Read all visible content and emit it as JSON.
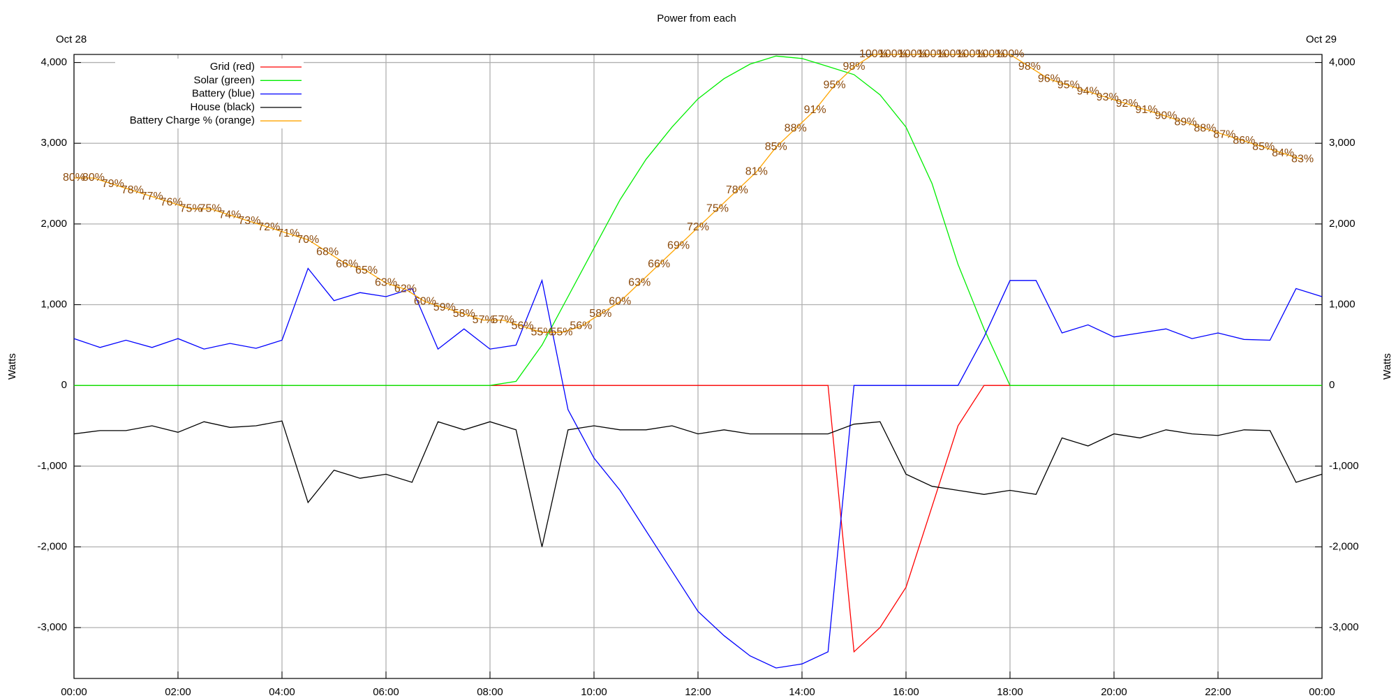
{
  "chart_data": {
    "type": "line",
    "title": "Power from each",
    "date_start": "Oct 28",
    "date_end": "Oct 29",
    "ylabel": "Watts",
    "legend": "upper left",
    "grid": true,
    "xlim": [
      0,
      24
    ],
    "xticks": [
      {
        "value": 0,
        "label": "00:00"
      },
      {
        "value": 2,
        "label": "02:00"
      },
      {
        "value": 4,
        "label": "04:00"
      },
      {
        "value": 6,
        "label": "06:00"
      },
      {
        "value": 8,
        "label": "08:00"
      },
      {
        "value": 10,
        "label": "10:00"
      },
      {
        "value": 12,
        "label": "12:00"
      },
      {
        "value": 14,
        "label": "14:00"
      },
      {
        "value": 16,
        "label": "16:00"
      },
      {
        "value": 18,
        "label": "18:00"
      },
      {
        "value": 20,
        "label": "20:00"
      },
      {
        "value": 22,
        "label": "22:00"
      },
      {
        "value": 24,
        "label": "00:00"
      }
    ],
    "ylim": [
      -3630,
      4100
    ],
    "yticks": [
      {
        "value": -3000,
        "label": "-3,000"
      },
      {
        "value": -2000,
        "label": "-2,000"
      },
      {
        "value": -1000,
        "label": "-1,000"
      },
      0,
      {
        "value": 1000,
        "label": "1,000"
      },
      {
        "value": 2000,
        "label": "2,000"
      },
      {
        "value": 3000,
        "label": "3,000"
      },
      {
        "value": 4000,
        "label": "4,000"
      }
    ],
    "y2lim": [
      -1,
      100
    ],
    "x": [
      0,
      0.5,
      1,
      1.5,
      2,
      2.5,
      3,
      3.5,
      4,
      4.5,
      5,
      5.5,
      6,
      6.5,
      7,
      7.5,
      8,
      8.5,
      9,
      9.5,
      10,
      10.5,
      11,
      11.5,
      12,
      12.5,
      13,
      13.5,
      14,
      14.5,
      15,
      15.5,
      16,
      16.5,
      17,
      17.5,
      18,
      18.5,
      19,
      19.5,
      20,
      20.5,
      21,
      21.5,
      22,
      22.5,
      23,
      23.5,
      24
    ],
    "series": [
      {
        "name": "Grid (red)",
        "color": "#ff0000",
        "values": [
          0,
          0,
          0,
          0,
          0,
          0,
          0,
          0,
          0,
          0,
          0,
          0,
          0,
          0,
          0,
          0,
          0,
          0,
          0,
          0,
          0,
          0,
          0,
          0,
          0,
          0,
          0,
          0,
          0,
          0,
          -3300,
          -3000,
          -2500,
          -1500,
          -500,
          0,
          0,
          0,
          0,
          0,
          0,
          0,
          0,
          0,
          0,
          0,
          0,
          0,
          0
        ]
      },
      {
        "name": "Solar (green)",
        "color": "#00ee00",
        "values": [
          0,
          0,
          0,
          0,
          0,
          0,
          0,
          0,
          0,
          0,
          0,
          0,
          0,
          0,
          0,
          0,
          0,
          50,
          500,
          1100,
          1700,
          2300,
          2800,
          3200,
          3550,
          3800,
          3980,
          4080,
          4050,
          3950,
          3850,
          3600,
          3200,
          2500,
          1500,
          700,
          0,
          0,
          0,
          0,
          0,
          0,
          0,
          0,
          0,
          0,
          0,
          0,
          0
        ]
      },
      {
        "name": "Battery (blue)",
        "color": "#0000ff",
        "values": [
          580,
          470,
          560,
          470,
          580,
          450,
          520,
          460,
          560,
          1450,
          1050,
          1150,
          1100,
          1200,
          450,
          700,
          450,
          500,
          1300,
          -300,
          -900,
          -1300,
          -1800,
          -2300,
          -2800,
          -3100,
          -3350,
          -3500,
          -3450,
          -3300,
          0,
          0,
          0,
          0,
          0,
          600,
          1300,
          1300,
          650,
          750,
          600,
          650,
          700,
          580,
          650,
          570,
          560,
          1200,
          1100
        ]
      },
      {
        "name": "House (black)",
        "color": "#000000",
        "values": [
          -600,
          -560,
          -560,
          -500,
          -580,
          -450,
          -520,
          -500,
          -440,
          -1450,
          -1050,
          -1150,
          -1100,
          -1200,
          -450,
          -550,
          -450,
          -550,
          -2000,
          -550,
          -500,
          -550,
          -550,
          -500,
          -600,
          -550,
          -600,
          -600,
          -600,
          -600,
          -480,
          -450,
          -1100,
          -1250,
          -1300,
          -1350,
          -1300,
          -1350,
          -650,
          -750,
          -600,
          -650,
          -550,
          -600,
          -620,
          -550,
          -560,
          -1200,
          -1100
        ]
      },
      {
        "name": "Battery Charge % (orange)",
        "color": "#ffa500",
        "label_color": "#8b4a0c",
        "axis": "y2",
        "x": [
          0,
          0.375,
          0.75,
          1.125,
          1.5,
          1.875,
          2.25,
          2.625,
          3,
          3.375,
          3.75,
          4.125,
          4.5,
          4.875,
          5.25,
          5.625,
          6,
          6.375,
          6.75,
          7.125,
          7.5,
          7.875,
          8.25,
          8.625,
          9,
          9.375,
          9.75,
          10.125,
          10.5,
          10.875,
          11.25,
          11.625,
          12,
          12.375,
          12.75,
          13.125,
          13.5,
          13.875,
          14.25,
          14.625,
          15,
          15.375,
          15.75,
          16.125,
          16.5,
          16.875,
          17.25,
          17.625,
          18,
          18.375,
          18.75,
          19.125,
          19.5,
          19.875,
          20.25,
          20.625,
          21,
          21.375,
          21.75,
          22.125,
          22.5,
          22.875,
          23.25,
          23.625
        ],
        "values": [
          80,
          80,
          79,
          78,
          77,
          76,
          75,
          75,
          74,
          73,
          72,
          71,
          70,
          68,
          66,
          65,
          63,
          62,
          60,
          59,
          58,
          57,
          57,
          56,
          55,
          55,
          56,
          58,
          60,
          63,
          66,
          69,
          72,
          75,
          78,
          81,
          85,
          88,
          91,
          95,
          98,
          100,
          100,
          100,
          100,
          100,
          100,
          100,
          100,
          98,
          96,
          95,
          94,
          93,
          92,
          91,
          90,
          89,
          88,
          87,
          86,
          85,
          84,
          83
        ],
        "value_labels": [
          "80%",
          "80%",
          "79%",
          "78%",
          "77%",
          "76%",
          "75%",
          "75%",
          "74%",
          "73%",
          "72%",
          "71%",
          "70%",
          "68%",
          "66%",
          "65%",
          "63%",
          "62%",
          "60%",
          "59%",
          "58%",
          "57%",
          "57%",
          "56%",
          "55%",
          "55%",
          "56%",
          "58%",
          "60%",
          "63%",
          "66%",
          "69%",
          "72%",
          "75%",
          "78%",
          "81%",
          "85%",
          "88%",
          "91%",
          "95%",
          "98%",
          "100%",
          "100%",
          "100%",
          "100%",
          "100%",
          "100%",
          "100%",
          "100%",
          "98%",
          "96%",
          "95%",
          "94%",
          "93%",
          "92%",
          "91%",
          "90%",
          "89%",
          "88%",
          "87%",
          "86%",
          "85%",
          "84%",
          "83%"
        ]
      }
    ]
  }
}
